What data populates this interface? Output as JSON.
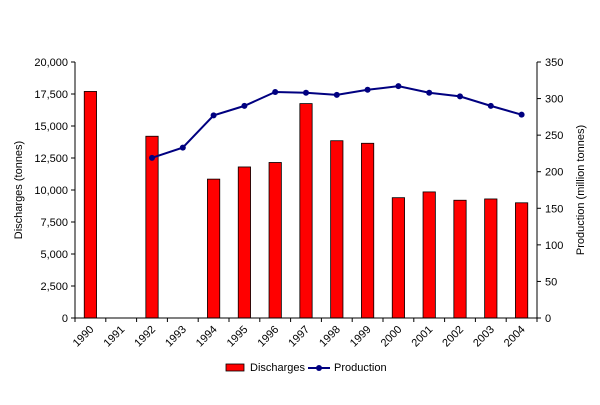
{
  "chart_data": {
    "type": "bar",
    "categories": [
      "1990",
      "1991",
      "1992",
      "1993",
      "1994",
      "1995",
      "1996",
      "1997",
      "1998",
      "1999",
      "2000",
      "2001",
      "2002",
      "2003",
      "2004"
    ],
    "series": [
      {
        "name": "Discharges",
        "type": "bar",
        "axis": "left",
        "color": "#ff0000",
        "values": [
          17700,
          null,
          14200,
          null,
          10850,
          11800,
          12150,
          16750,
          13850,
          13650,
          9400,
          9850,
          9200,
          9300,
          9000
        ]
      },
      {
        "name": "Production",
        "type": "line",
        "axis": "right",
        "color": "#000080",
        "values": [
          null,
          null,
          219,
          233,
          277,
          290,
          309,
          308,
          305,
          312,
          317,
          308,
          303,
          290,
          278
        ]
      }
    ],
    "ylabel": "Discharges (tonnes)",
    "ylabel_right": "Production (million tonnes)",
    "ylim": [
      0,
      20000
    ],
    "ylim_right": [
      0,
      350
    ],
    "yticks": [
      "0",
      "2,500",
      "5,000",
      "7,500",
      "10,000",
      "12,500",
      "15,000",
      "17,500",
      "20,000"
    ],
    "yticks_right": [
      "0",
      "50",
      "100",
      "150",
      "200",
      "250",
      "300",
      "350"
    ],
    "legend_position": "bottom",
    "grid": false
  }
}
